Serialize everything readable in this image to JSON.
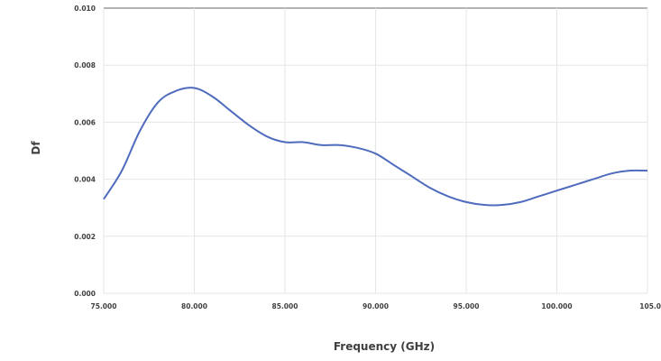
{
  "chart_data": {
    "type": "line",
    "xlabel": "Frequency (GHz)",
    "ylabel": "Df",
    "xlim": [
      75,
      105
    ],
    "ylim": [
      0,
      0.01
    ],
    "x_ticks": [
      "75.000",
      "80.000",
      "85.000",
      "90.000",
      "95.000",
      "100.000",
      "105.0"
    ],
    "y_ticks": [
      "0.000",
      "0.002",
      "0.004",
      "0.006",
      "0.008",
      "0.010"
    ],
    "grid": true,
    "legend": "none",
    "series": [
      {
        "color": "#4f6bbd",
        "x": [
          75,
          76,
          77,
          78,
          79,
          80,
          81,
          82,
          83,
          84,
          85,
          86,
          87,
          88,
          89,
          90,
          91,
          92,
          93,
          94,
          95,
          96,
          97,
          98,
          99,
          100,
          101,
          102,
          103,
          104,
          105
        ],
        "y": [
          0.0033,
          0.0043,
          0.0057,
          0.0067,
          0.0071,
          0.0072,
          0.0069,
          0.0064,
          0.0059,
          0.0055,
          0.0053,
          0.0053,
          0.0052,
          0.0052,
          0.0051,
          0.0049,
          0.0045,
          0.0041,
          0.0037,
          0.0034,
          0.0032,
          0.0031,
          0.0031,
          0.0032,
          0.0034,
          0.0036,
          0.0038,
          0.004,
          0.0042,
          0.0043,
          0.0043
        ]
      }
    ]
  }
}
